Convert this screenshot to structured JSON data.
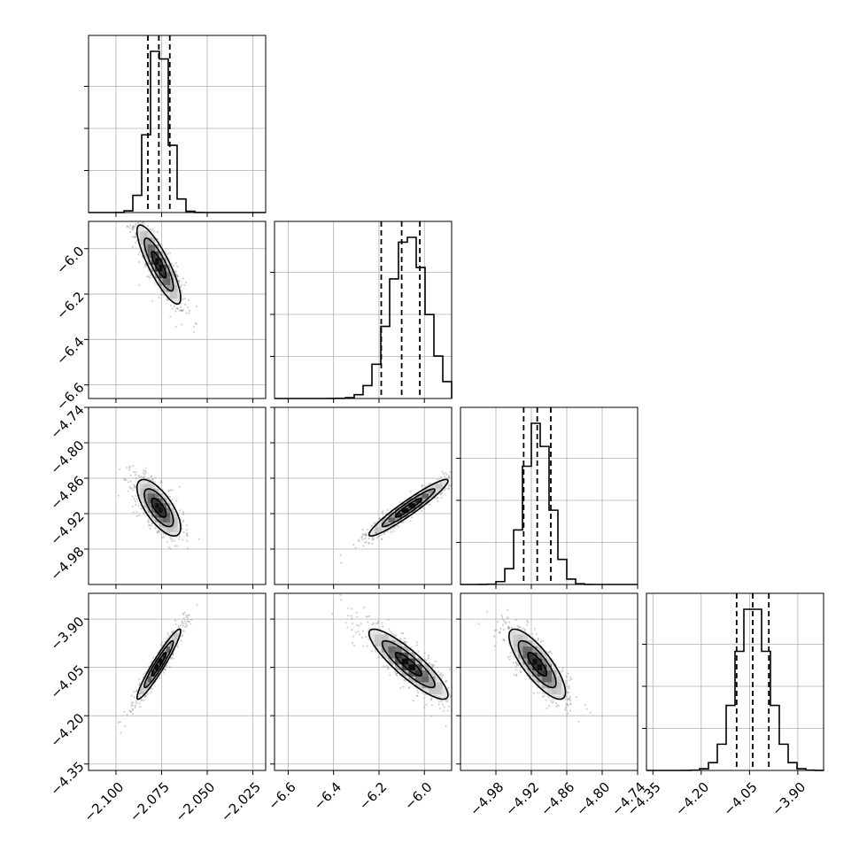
{
  "chart_data": {
    "type": "corner",
    "parameters": [
      {
        "range": [
          -2.115,
          -2.018
        ],
        "ticks": [
          -2.1,
          -2.075,
          -2.05,
          -2.025
        ],
        "tick_labels": [
          "−2.100",
          "−2.075",
          "−2.050",
          "−2.025"
        ],
        "quantiles": [
          -2.0825,
          -2.0765,
          -2.0705
        ],
        "peak": -2.0765,
        "sd": 0.0055
      },
      {
        "range": [
          -6.66,
          -5.88
        ],
        "ticks": [
          -6.6,
          -6.4,
          -6.2,
          -6.0
        ],
        "tick_labels": [
          "−6.6",
          "−6.4",
          "−6.2",
          "−6.0"
        ],
        "quantiles": [
          -6.19,
          -6.1,
          -6.02
        ],
        "peak": -6.07,
        "sd": 0.08
      },
      {
        "range": [
          -5.04,
          -4.74
        ],
        "ticks": [
          -4.98,
          -4.92,
          -4.86,
          -4.8,
          -4.74
        ],
        "tick_labels": [
          "−4.98",
          "−4.92",
          "−4.86",
          "−4.80",
          "−4.74"
        ],
        "quantiles": [
          -4.933,
          -4.91,
          -4.887
        ],
        "peak": -4.91,
        "sd": 0.022
      },
      {
        "range": [
          -4.37,
          -3.82
        ],
        "ticks": [
          -4.35,
          -4.2,
          -4.05,
          -3.9
        ],
        "tick_labels": [
          "−4.35",
          "−4.20",
          "−4.05",
          "−3.90"
        ],
        "quantiles": [
          -4.09,
          -4.04,
          -3.99
        ],
        "peak": -4.04,
        "sd": 0.05
      }
    ],
    "correlations": {
      "1_0": -0.85,
      "2_0": -0.7,
      "2_1": 0.95,
      "3_0": 0.95,
      "3_1": -0.88,
      "3_2": -0.8
    },
    "contour_levels": [
      0.5,
      1.0,
      1.5
    ],
    "grid": true,
    "colors": {
      "hist": "#000000",
      "points": "#7a7a7a",
      "contour": "#000000"
    }
  }
}
